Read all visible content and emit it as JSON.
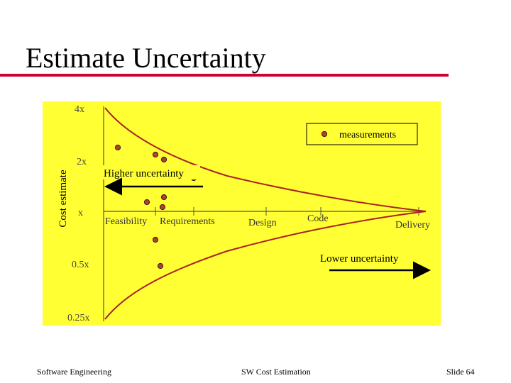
{
  "slide": {
    "title": "Estimate Uncertainty",
    "footer_left": "Software Engineering",
    "footer_center": "SW Cost Estimation",
    "footer_right": "Slide 64"
  },
  "diagram": {
    "y_axis_label": "Cost estimate",
    "y_ticks": [
      "4x",
      "2x",
      "x",
      "0.5x",
      "0.25x"
    ],
    "phases": [
      "Feasibility",
      "Requirements",
      "Design",
      "Code",
      "Delivery"
    ],
    "legend_label": "measurements",
    "higher_label": "Higher uncertainty",
    "lower_label": "Lower uncertainty",
    "colors": {
      "background": "#ffff33",
      "curve": "#aa2222",
      "point": "#c0392b",
      "accent_rule": "#cc0033"
    }
  }
}
